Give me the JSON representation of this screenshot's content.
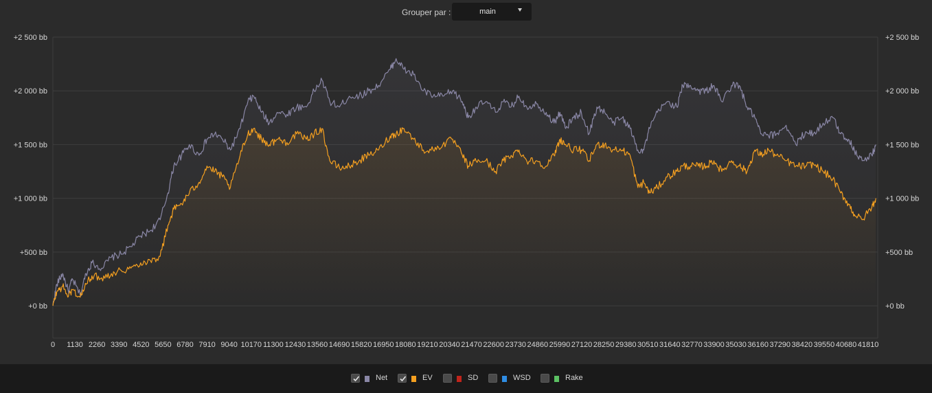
{
  "toolbar": {
    "group_by_label": "Grouper par :",
    "group_by_value": "main"
  },
  "legend": [
    {
      "label": "Net",
      "checked": true,
      "color": "#8a87a6",
      "icon": "checkbox-icon"
    },
    {
      "label": "EV",
      "checked": true,
      "color": "#f5a020",
      "icon": "checkbox-icon"
    },
    {
      "label": "SD",
      "checked": false,
      "color": "#c0241b",
      "icon": "checkbox-icon"
    },
    {
      "label": "WSD",
      "checked": false,
      "color": "#2f8de4",
      "icon": "checkbox-icon"
    },
    {
      "label": "Rake",
      "checked": false,
      "color": "#5cc163",
      "icon": "checkbox-icon"
    }
  ],
  "chart_data": {
    "type": "line",
    "ylim": [
      -300,
      2500
    ],
    "xlim": [
      0,
      42300
    ],
    "y_ticks": [
      0,
      500,
      1000,
      1500,
      2000,
      2500
    ],
    "y_tick_labels": [
      "+0 bb",
      "+500 bb",
      "+1 000 bb",
      "+1 500 bb",
      "+2 000 bb",
      "+2 500 bb"
    ],
    "x_ticks": [
      0,
      1130,
      2260,
      3390,
      4520,
      5650,
      6780,
      7910,
      9040,
      10170,
      11300,
      12430,
      13560,
      14690,
      15820,
      16950,
      18080,
      19210,
      20340,
      21470,
      22600,
      23730,
      24860,
      25990,
      27120,
      28250,
      29380,
      30510,
      31640,
      32770,
      33900,
      35030,
      36160,
      37290,
      38420,
      39550,
      40680,
      41810
    ],
    "x_tick_labels": [
      "0",
      "1130",
      "2260",
      "3390",
      "4520",
      "5650",
      "6780",
      "7910",
      "9040",
      "10170",
      "11300",
      "12430",
      "13560",
      "14690",
      "15820",
      "16950",
      "18080",
      "19210",
      "20340",
      "21470",
      "22600",
      "23730",
      "24860",
      "25990",
      "27120",
      "28250",
      "29380",
      "30510",
      "31640",
      "32770",
      "33900",
      "35030",
      "36160",
      "37290",
      "38420",
      "39550",
      "40680",
      "41810"
    ],
    "grid": true,
    "series": [
      {
        "name": "Net",
        "color": "#8a87a6",
        "x": [
          0,
          200,
          500,
          800,
          1000,
          1400,
          1700,
          2000,
          2500,
          3000,
          3500,
          4000,
          4500,
          5000,
          5500,
          5900,
          6200,
          6600,
          7000,
          7500,
          7900,
          8300,
          8700,
          9100,
          9600,
          10000,
          10300,
          10700,
          11100,
          11500,
          12000,
          12500,
          13000,
          13400,
          13800,
          14200,
          14700,
          15200,
          15700,
          16200,
          16700,
          17300,
          17600,
          18000,
          18500,
          19000,
          19500,
          20000,
          20500,
          21000,
          21300,
          21700,
          22200,
          22700,
          23100,
          23500,
          23900,
          24300,
          24800,
          25300,
          25700,
          26000,
          26300,
          26700,
          27100,
          27500,
          27900,
          28300,
          28700,
          29200,
          29600,
          30000,
          30300,
          30600,
          31000,
          31500,
          32000,
          32300,
          32700,
          33100,
          33500,
          33900,
          34300,
          34800,
          35200,
          35600,
          36000,
          36300,
          36700,
          37100,
          37600,
          38100,
          38600,
          39000,
          39500,
          40000,
          40400,
          40800,
          41100,
          41500,
          42000,
          42200
        ],
        "values": [
          0,
          200,
          300,
          130,
          250,
          100,
          300,
          400,
          350,
          450,
          480,
          550,
          650,
          700,
          800,
          1050,
          1300,
          1400,
          1500,
          1400,
          1550,
          1600,
          1550,
          1450,
          1650,
          1900,
          1950,
          1800,
          1700,
          1800,
          1780,
          1850,
          1850,
          2000,
          2100,
          1900,
          1850,
          1950,
          1950,
          2000,
          2050,
          2200,
          2300,
          2200,
          2150,
          2000,
          1950,
          1950,
          2000,
          1900,
          1750,
          1850,
          1900,
          1800,
          1900,
          1850,
          1950,
          1850,
          1880,
          1800,
          1700,
          1800,
          1650,
          1750,
          1800,
          1600,
          1850,
          1800,
          1700,
          1750,
          1650,
          1450,
          1450,
          1650,
          1800,
          1900,
          1850,
          2050,
          2050,
          2000,
          2000,
          2050,
          1900,
          2050,
          2050,
          1850,
          1750,
          1600,
          1580,
          1600,
          1680,
          1500,
          1620,
          1600,
          1700,
          1750,
          1600,
          1550,
          1450,
          1350,
          1400,
          1500
        ]
      },
      {
        "name": "EV",
        "color": "#f5a020",
        "x": [
          0,
          200,
          500,
          800,
          1000,
          1400,
          1700,
          2000,
          2500,
          3000,
          3500,
          4000,
          4500,
          5000,
          5500,
          5900,
          6200,
          6600,
          7000,
          7500,
          7900,
          8300,
          8700,
          9100,
          9600,
          10000,
          10300,
          10700,
          11100,
          11500,
          12000,
          12500,
          13000,
          13400,
          13800,
          14200,
          14700,
          15200,
          15700,
          16200,
          16700,
          17300,
          17600,
          18000,
          18500,
          19000,
          19500,
          20000,
          20500,
          21000,
          21300,
          21700,
          22200,
          22700,
          23100,
          23500,
          23900,
          24300,
          24800,
          25300,
          25700,
          26000,
          26300,
          26700,
          27100,
          27500,
          27900,
          28300,
          28700,
          29200,
          29600,
          30000,
          30300,
          30600,
          31000,
          31500,
          32000,
          32300,
          32700,
          33100,
          33500,
          33900,
          34300,
          34800,
          35200,
          35600,
          36000,
          36300,
          36700,
          37100,
          37600,
          38100,
          38600,
          39000,
          39500,
          40000,
          40400,
          40800,
          41100,
          41500,
          42000,
          42200
        ],
        "values": [
          0,
          130,
          180,
          90,
          150,
          80,
          200,
          280,
          260,
          300,
          330,
          350,
          400,
          420,
          460,
          750,
          900,
          950,
          1050,
          1150,
          1300,
          1250,
          1200,
          1100,
          1400,
          1600,
          1650,
          1550,
          1500,
          1550,
          1520,
          1600,
          1550,
          1600,
          1650,
          1350,
          1280,
          1300,
          1350,
          1400,
          1450,
          1580,
          1600,
          1650,
          1550,
          1450,
          1450,
          1500,
          1550,
          1400,
          1300,
          1350,
          1350,
          1250,
          1350,
          1400,
          1450,
          1350,
          1350,
          1300,
          1400,
          1550,
          1500,
          1450,
          1450,
          1350,
          1500,
          1500,
          1450,
          1450,
          1400,
          1100,
          1150,
          1050,
          1100,
          1200,
          1250,
          1300,
          1300,
          1300,
          1300,
          1350,
          1250,
          1350,
          1300,
          1250,
          1450,
          1400,
          1450,
          1400,
          1350,
          1300,
          1300,
          1320,
          1250,
          1180,
          1050,
          950,
          850,
          800,
          920,
          1000
        ]
      }
    ]
  }
}
